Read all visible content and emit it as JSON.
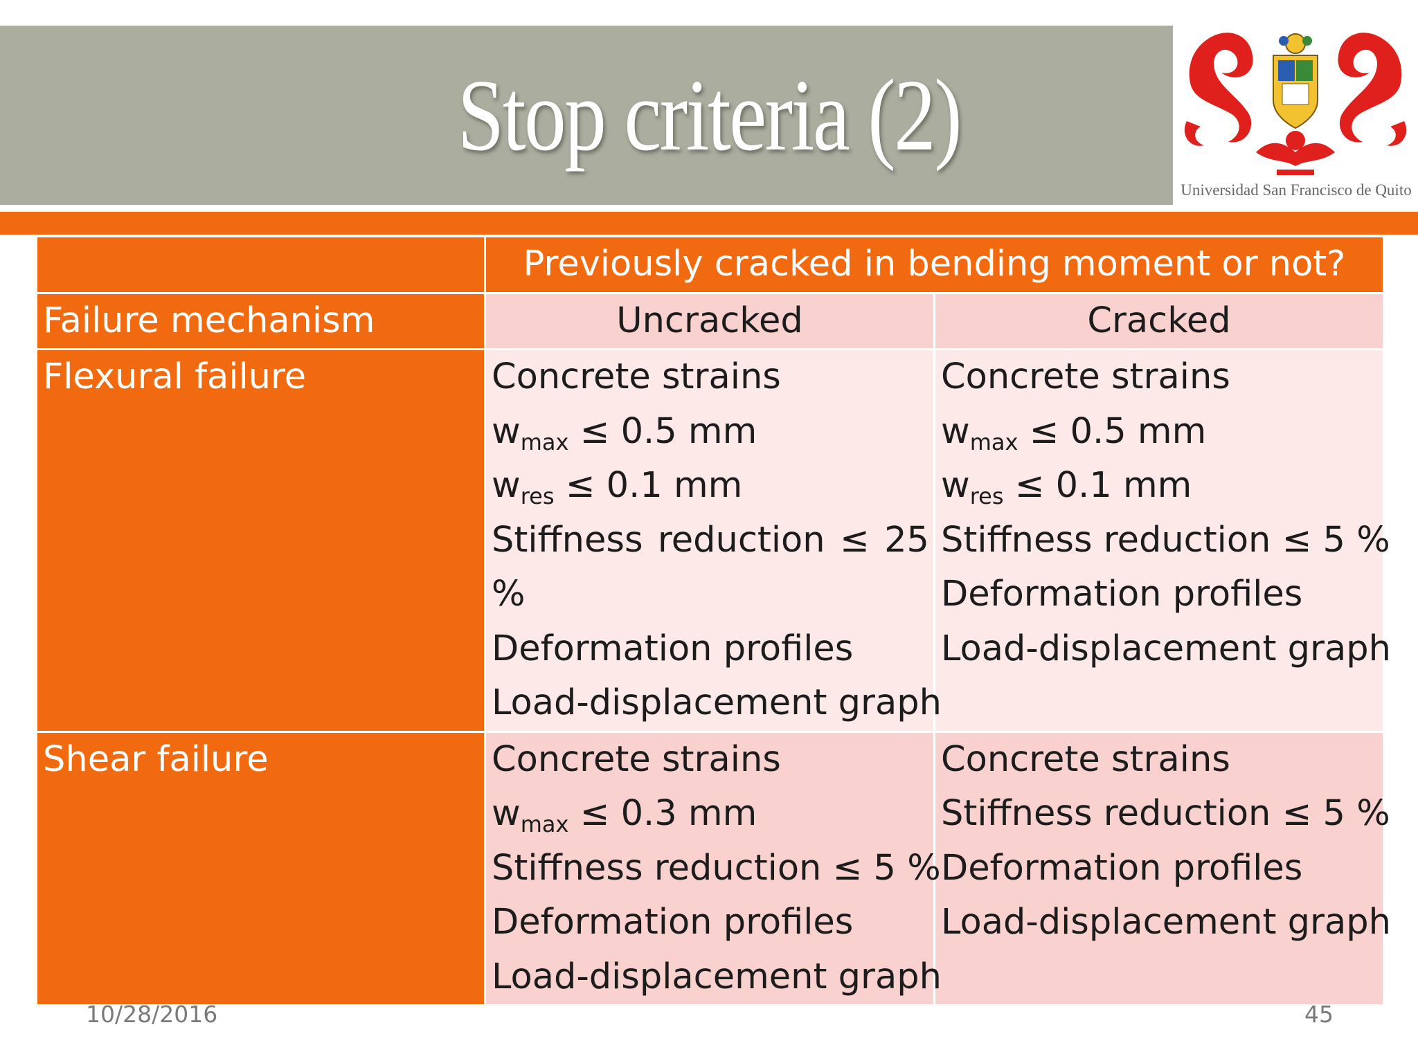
{
  "slide": {
    "title": "Stop criteria (2)",
    "logo_caption": "Universidad San Francisco de Quito",
    "date": "10/28/2016",
    "page_number": "45"
  },
  "colors": {
    "title_bar": "#abad9f",
    "accent_orange": "#f26a10",
    "cell_light": "#fce9e8",
    "cell_mid": "#f9d1cf"
  },
  "table": {
    "question_header": "Previously cracked in bending moment or not?",
    "col_label": "Failure mechanism",
    "col_uncracked": "Uncracked",
    "col_cracked": "Cracked",
    "flexural": {
      "label": "Flexural failure",
      "uncracked": {
        "l1": "Concrete strains",
        "l2_base": "w",
        "l2_sub": "max",
        "l2_rest": " ≤ 0.5 mm",
        "l3_base": "w",
        "l3_sub": "res",
        "l3_rest": " ≤ 0.1 mm",
        "l4_w1": "Stiffness",
        "l4_w2": "reduction",
        "l4_w3": "≤",
        "l4_w4": "25",
        "l5": "%",
        "l6": "Deformation profiles",
        "l7": "Load-displacement graph"
      },
      "cracked": {
        "l1": "Concrete strains",
        "l2_base": "w",
        "l2_sub": "max",
        "l2_rest": " ≤ 0.5 mm",
        "l3_base": "w",
        "l3_sub": "res",
        "l3_rest": " ≤ 0.1 mm",
        "l4": "Stiffness reduction ≤ 5 %",
        "l5": "Deformation profiles",
        "l6": "Load-displacement graph"
      }
    },
    "shear": {
      "label": "Shear failure",
      "uncracked": {
        "l1": "Concrete strains",
        "l2_base": "w",
        "l2_sub": "max",
        "l2_rest": " ≤ 0.3 mm",
        "l3": "Stiffness reduction ≤ 5 %",
        "l4": "Deformation profiles",
        "l5": "Load-displacement graph"
      },
      "cracked": {
        "l1": "Concrete strains",
        "l2": "Stiffness reduction ≤ 5 %",
        "l3": "Deformation profiles",
        "l4": "Load-displacement graph"
      }
    }
  }
}
